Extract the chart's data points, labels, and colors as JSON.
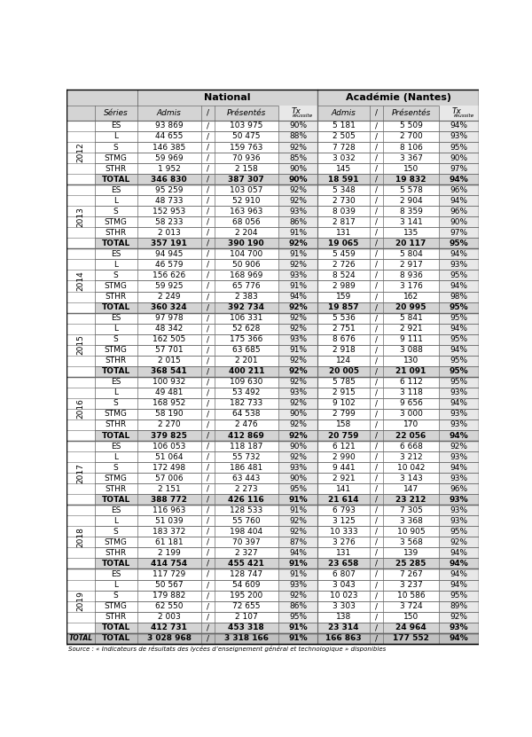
{
  "footer": "Source : « Indicateurs de résultats des lycées d’enseignement général et technologique » disponibles",
  "years": [
    "2012",
    "2013",
    "2014",
    "2015",
    "2016",
    "2017",
    "2018",
    "2019"
  ],
  "rows": [
    {
      "year": "2012",
      "serie": "ES",
      "nat_admis": "93 869",
      "nat_pres": "103 975",
      "nat_tx": "90%",
      "aca_admis": "5 181",
      "aca_pres": "5 509",
      "aca_tx": "94%"
    },
    {
      "year": "2012",
      "serie": "L",
      "nat_admis": "44 655",
      "nat_pres": "50 475",
      "nat_tx": "88%",
      "aca_admis": "2 505",
      "aca_pres": "2 700",
      "aca_tx": "93%"
    },
    {
      "year": "2012",
      "serie": "S",
      "nat_admis": "146 385",
      "nat_pres": "159 763",
      "nat_tx": "92%",
      "aca_admis": "7 728",
      "aca_pres": "8 106",
      "aca_tx": "95%"
    },
    {
      "year": "2012",
      "serie": "STMG",
      "nat_admis": "59 969",
      "nat_pres": "70 936",
      "nat_tx": "85%",
      "aca_admis": "3 032",
      "aca_pres": "3 367",
      "aca_tx": "90%"
    },
    {
      "year": "2012",
      "serie": "STHR",
      "nat_admis": "1 952",
      "nat_pres": "2 158",
      "nat_tx": "90%",
      "aca_admis": "145",
      "aca_pres": "150",
      "aca_tx": "97%"
    },
    {
      "year": "2012",
      "serie": "TOTAL",
      "nat_admis": "346 830",
      "nat_pres": "387 307",
      "nat_tx": "90%",
      "aca_admis": "18 591",
      "aca_pres": "19 832",
      "aca_tx": "94%"
    },
    {
      "year": "2013",
      "serie": "ES",
      "nat_admis": "95 259",
      "nat_pres": "103 057",
      "nat_tx": "92%",
      "aca_admis": "5 348",
      "aca_pres": "5 578",
      "aca_tx": "96%"
    },
    {
      "year": "2013",
      "serie": "L",
      "nat_admis": "48 733",
      "nat_pres": "52 910",
      "nat_tx": "92%",
      "aca_admis": "2 730",
      "aca_pres": "2 904",
      "aca_tx": "94%"
    },
    {
      "year": "2013",
      "serie": "S",
      "nat_admis": "152 953",
      "nat_pres": "163 963",
      "nat_tx": "93%",
      "aca_admis": "8 039",
      "aca_pres": "8 359",
      "aca_tx": "96%"
    },
    {
      "year": "2013",
      "serie": "STMG",
      "nat_admis": "58 233",
      "nat_pres": "68 056",
      "nat_tx": "86%",
      "aca_admis": "2 817",
      "aca_pres": "3 141",
      "aca_tx": "90%"
    },
    {
      "year": "2013",
      "serie": "STHR",
      "nat_admis": "2 013",
      "nat_pres": "2 204",
      "nat_tx": "91%",
      "aca_admis": "131",
      "aca_pres": "135",
      "aca_tx": "97%"
    },
    {
      "year": "2013",
      "serie": "TOTAL",
      "nat_admis": "357 191",
      "nat_pres": "390 190",
      "nat_tx": "92%",
      "aca_admis": "19 065",
      "aca_pres": "20 117",
      "aca_tx": "95%"
    },
    {
      "year": "2014",
      "serie": "ES",
      "nat_admis": "94 945",
      "nat_pres": "104 700",
      "nat_tx": "91%",
      "aca_admis": "5 459",
      "aca_pres": "5 804",
      "aca_tx": "94%"
    },
    {
      "year": "2014",
      "serie": "L",
      "nat_admis": "46 579",
      "nat_pres": "50 906",
      "nat_tx": "92%",
      "aca_admis": "2 726",
      "aca_pres": "2 917",
      "aca_tx": "93%"
    },
    {
      "year": "2014",
      "serie": "S",
      "nat_admis": "156 626",
      "nat_pres": "168 969",
      "nat_tx": "93%",
      "aca_admis": "8 524",
      "aca_pres": "8 936",
      "aca_tx": "95%"
    },
    {
      "year": "2014",
      "serie": "STMG",
      "nat_admis": "59 925",
      "nat_pres": "65 776",
      "nat_tx": "91%",
      "aca_admis": "2 989",
      "aca_pres": "3 176",
      "aca_tx": "94%"
    },
    {
      "year": "2014",
      "serie": "STHR",
      "nat_admis": "2 249",
      "nat_pres": "2 383",
      "nat_tx": "94%",
      "aca_admis": "159",
      "aca_pres": "162",
      "aca_tx": "98%"
    },
    {
      "year": "2014",
      "serie": "TOTAL",
      "nat_admis": "360 324",
      "nat_pres": "392 734",
      "nat_tx": "92%",
      "aca_admis": "19 857",
      "aca_pres": "20 995",
      "aca_tx": "95%"
    },
    {
      "year": "2015",
      "serie": "ES",
      "nat_admis": "97 978",
      "nat_pres": "106 331",
      "nat_tx": "92%",
      "aca_admis": "5 536",
      "aca_pres": "5 841",
      "aca_tx": "95%"
    },
    {
      "year": "2015",
      "serie": "L",
      "nat_admis": "48 342",
      "nat_pres": "52 628",
      "nat_tx": "92%",
      "aca_admis": "2 751",
      "aca_pres": "2 921",
      "aca_tx": "94%"
    },
    {
      "year": "2015",
      "serie": "S",
      "nat_admis": "162 505",
      "nat_pres": "175 366",
      "nat_tx": "93%",
      "aca_admis": "8 676",
      "aca_pres": "9 111",
      "aca_tx": "95%"
    },
    {
      "year": "2015",
      "serie": "STMG",
      "nat_admis": "57 701",
      "nat_pres": "63 685",
      "nat_tx": "91%",
      "aca_admis": "2 918",
      "aca_pres": "3 088",
      "aca_tx": "94%"
    },
    {
      "year": "2015",
      "serie": "STHR",
      "nat_admis": "2 015",
      "nat_pres": "2 201",
      "nat_tx": "92%",
      "aca_admis": "124",
      "aca_pres": "130",
      "aca_tx": "95%"
    },
    {
      "year": "2015",
      "serie": "TOTAL",
      "nat_admis": "368 541",
      "nat_pres": "400 211",
      "nat_tx": "92%",
      "aca_admis": "20 005",
      "aca_pres": "21 091",
      "aca_tx": "95%"
    },
    {
      "year": "2016",
      "serie": "ES",
      "nat_admis": "100 932",
      "nat_pres": "109 630",
      "nat_tx": "92%",
      "aca_admis": "5 785",
      "aca_pres": "6 112",
      "aca_tx": "95%"
    },
    {
      "year": "2016",
      "serie": "L",
      "nat_admis": "49 481",
      "nat_pres": "53 492",
      "nat_tx": "93%",
      "aca_admis": "2 915",
      "aca_pres": "3 118",
      "aca_tx": "93%"
    },
    {
      "year": "2016",
      "serie": "S",
      "nat_admis": "168 952",
      "nat_pres": "182 733",
      "nat_tx": "92%",
      "aca_admis": "9 102",
      "aca_pres": "9 656",
      "aca_tx": "94%"
    },
    {
      "year": "2016",
      "serie": "STMG",
      "nat_admis": "58 190",
      "nat_pres": "64 538",
      "nat_tx": "90%",
      "aca_admis": "2 799",
      "aca_pres": "3 000",
      "aca_tx": "93%"
    },
    {
      "year": "2016",
      "serie": "STHR",
      "nat_admis": "2 270",
      "nat_pres": "2 476",
      "nat_tx": "92%",
      "aca_admis": "158",
      "aca_pres": "170",
      "aca_tx": "93%"
    },
    {
      "year": "2016",
      "serie": "TOTAL",
      "nat_admis": "379 825",
      "nat_pres": "412 869",
      "nat_tx": "92%",
      "aca_admis": "20 759",
      "aca_pres": "22 056",
      "aca_tx": "94%"
    },
    {
      "year": "2017",
      "serie": "ES",
      "nat_admis": "106 053",
      "nat_pres": "118 187",
      "nat_tx": "90%",
      "aca_admis": "6 121",
      "aca_pres": "6 668",
      "aca_tx": "92%"
    },
    {
      "year": "2017",
      "serie": "L",
      "nat_admis": "51 064",
      "nat_pres": "55 732",
      "nat_tx": "92%",
      "aca_admis": "2 990",
      "aca_pres": "3 212",
      "aca_tx": "93%"
    },
    {
      "year": "2017",
      "serie": "S",
      "nat_admis": "172 498",
      "nat_pres": "186 481",
      "nat_tx": "93%",
      "aca_admis": "9 441",
      "aca_pres": "10 042",
      "aca_tx": "94%"
    },
    {
      "year": "2017",
      "serie": "STMG",
      "nat_admis": "57 006",
      "nat_pres": "63 443",
      "nat_tx": "90%",
      "aca_admis": "2 921",
      "aca_pres": "3 143",
      "aca_tx": "93%"
    },
    {
      "year": "2017",
      "serie": "STHR",
      "nat_admis": "2 151",
      "nat_pres": "2 273",
      "nat_tx": "95%",
      "aca_admis": "141",
      "aca_pres": "147",
      "aca_tx": "96%"
    },
    {
      "year": "2017",
      "serie": "TOTAL",
      "nat_admis": "388 772",
      "nat_pres": "426 116",
      "nat_tx": "91%",
      "aca_admis": "21 614",
      "aca_pres": "23 212",
      "aca_tx": "93%"
    },
    {
      "year": "2018",
      "serie": "ES",
      "nat_admis": "116 963",
      "nat_pres": "128 533",
      "nat_tx": "91%",
      "aca_admis": "6 793",
      "aca_pres": "7 305",
      "aca_tx": "93%"
    },
    {
      "year": "2018",
      "serie": "L",
      "nat_admis": "51 039",
      "nat_pres": "55 760",
      "nat_tx": "92%",
      "aca_admis": "3 125",
      "aca_pres": "3 368",
      "aca_tx": "93%"
    },
    {
      "year": "2018",
      "serie": "S",
      "nat_admis": "183 372",
      "nat_pres": "198 404",
      "nat_tx": "92%",
      "aca_admis": "10 333",
      "aca_pres": "10 905",
      "aca_tx": "95%"
    },
    {
      "year": "2018",
      "serie": "STMG",
      "nat_admis": "61 181",
      "nat_pres": "70 397",
      "nat_tx": "87%",
      "aca_admis": "3 276",
      "aca_pres": "3 568",
      "aca_tx": "92%"
    },
    {
      "year": "2018",
      "serie": "STHR",
      "nat_admis": "2 199",
      "nat_pres": "2 327",
      "nat_tx": "94%",
      "aca_admis": "131",
      "aca_pres": "139",
      "aca_tx": "94%"
    },
    {
      "year": "2018",
      "serie": "TOTAL",
      "nat_admis": "414 754",
      "nat_pres": "455 421",
      "nat_tx": "91%",
      "aca_admis": "23 658",
      "aca_pres": "25 285",
      "aca_tx": "94%"
    },
    {
      "year": "2019",
      "serie": "ES",
      "nat_admis": "117 729",
      "nat_pres": "128 747",
      "nat_tx": "91%",
      "aca_admis": "6 807",
      "aca_pres": "7 267",
      "aca_tx": "94%"
    },
    {
      "year": "2019",
      "serie": "L",
      "nat_admis": "50 567",
      "nat_pres": "54 609",
      "nat_tx": "93%",
      "aca_admis": "3 043",
      "aca_pres": "3 237",
      "aca_tx": "94%"
    },
    {
      "year": "2019",
      "serie": "S",
      "nat_admis": "179 882",
      "nat_pres": "195 200",
      "nat_tx": "92%",
      "aca_admis": "10 023",
      "aca_pres": "10 586",
      "aca_tx": "95%"
    },
    {
      "year": "2019",
      "serie": "STMG",
      "nat_admis": "62 550",
      "nat_pres": "72 655",
      "nat_tx": "86%",
      "aca_admis": "3 303",
      "aca_pres": "3 724",
      "aca_tx": "89%"
    },
    {
      "year": "2019",
      "serie": "STHR",
      "nat_admis": "2 003",
      "nat_pres": "2 107",
      "nat_tx": "95%",
      "aca_admis": "138",
      "aca_pres": "150",
      "aca_tx": "92%"
    },
    {
      "year": "2019",
      "serie": "TOTAL",
      "nat_admis": "412 731",
      "nat_pres": "453 318",
      "nat_tx": "91%",
      "aca_admis": "23 314",
      "aca_pres": "24 964",
      "aca_tx": "93%"
    },
    {
      "year": "TOTAL",
      "serie": "TOTAL",
      "nat_admis": "3 028 968",
      "nat_pres": "3 318 166",
      "nat_tx": "91%",
      "aca_admis": "166 863",
      "aca_pres": "177 552",
      "aca_tx": "94%"
    }
  ],
  "col_header_national": "National",
  "col_header_academie": "Académie (Nantes)",
  "col_sub_series": "Séries",
  "col_sub_admis": "Admis",
  "col_sub_slash": "/",
  "col_sub_pres": "Présentés",
  "col_sub_tx": "Tx",
  "col_sub_tx_sub": "réussite",
  "WHITE": "#ffffff",
  "HEADER_GRAY": "#d4d4d4",
  "TOTAL_BG": "#d4d4d4",
  "GRAND_TOTAL_BG": "#c0c0c0",
  "TX_COL_BG": "#e8e8e8",
  "BORDER": "#666666",
  "BORDER_THICK": "#000000"
}
